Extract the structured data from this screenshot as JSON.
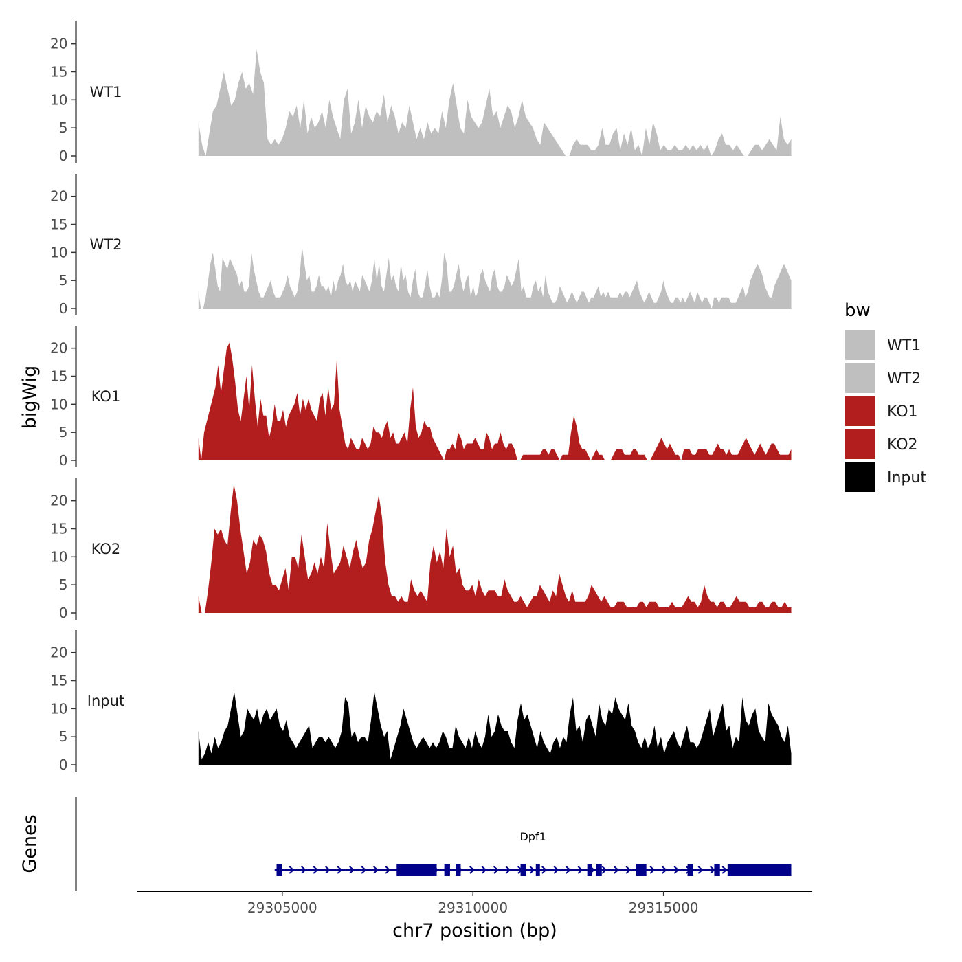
{
  "chart_data": {
    "type": "area",
    "ylabel": "bigWig",
    "genes_label": "Genes",
    "xlabel": "chr7 position (bp)",
    "x_ticks": [
      29305000,
      29310000,
      29315000
    ],
    "x_tick_labels": [
      "29305000",
      "29310000",
      "29315000"
    ],
    "xlim": [
      29301200,
      29318900
    ],
    "data_xlim": [
      29302800,
      29318350
    ],
    "ylim": [
      0,
      24
    ],
    "y_ticks": [
      0,
      5,
      10,
      15,
      20
    ],
    "y_tick_labels": [
      "0",
      "5",
      "10",
      "15",
      "20"
    ],
    "legend": {
      "title": "bw",
      "entries": [
        {
          "label": "WT1",
          "color": "#bfbfbf"
        },
        {
          "label": "WT2",
          "color": "#bfbfbf"
        },
        {
          "label": "KO1",
          "color": "#b21e1e"
        },
        {
          "label": "KO2",
          "color": "#b21e1e"
        },
        {
          "label": "Input",
          "color": "#000000"
        }
      ]
    },
    "series": [
      {
        "name": "WT1",
        "color": "#bfbfbf",
        "values": [
          6,
          2,
          0,
          4,
          8,
          9,
          12,
          15,
          12,
          9,
          10,
          13,
          15,
          12,
          13,
          11,
          19,
          15,
          13,
          3,
          2,
          3,
          2,
          3,
          5,
          8,
          7,
          9,
          5,
          10,
          4,
          7,
          5,
          6,
          8,
          5,
          10,
          7,
          5,
          3,
          10,
          12,
          4,
          6,
          10,
          5,
          9,
          7,
          6,
          8,
          7,
          11,
          6,
          9,
          7,
          4,
          6,
          5,
          9,
          6,
          3,
          5,
          3,
          6,
          4,
          5,
          4,
          8,
          5,
          10,
          13,
          9,
          5,
          4,
          10,
          7,
          6,
          5,
          6,
          9,
          12,
          7,
          8,
          5,
          7,
          9,
          8,
          5,
          7,
          10,
          7,
          6,
          5,
          3,
          2,
          6,
          5,
          4,
          3,
          2,
          1,
          0,
          0,
          2,
          3,
          2,
          2,
          2,
          1,
          1,
          2,
          5,
          2,
          2,
          4,
          5,
          1,
          4,
          2,
          5,
          1,
          2,
          0,
          5,
          2,
          6,
          4,
          1,
          2,
          1,
          1,
          2,
          1,
          1,
          2,
          1,
          2,
          1,
          2,
          1,
          2,
          0,
          1,
          3,
          4,
          2,
          2,
          1,
          2,
          1,
          0,
          0,
          1,
          2,
          2,
          1,
          2,
          3,
          2,
          1,
          7,
          3,
          2,
          3
        ]
      },
      {
        "name": "WT2",
        "color": "#bfbfbf",
        "values": [
          3,
          0,
          0,
          2,
          5,
          8,
          10,
          7,
          4,
          3,
          9,
          8,
          7,
          9,
          8,
          7,
          6,
          4,
          5,
          3,
          3,
          4,
          10,
          7,
          5,
          3,
          2,
          2,
          3,
          4,
          5,
          3,
          2,
          2,
          2,
          3,
          4,
          6,
          4,
          3,
          2,
          3,
          6,
          11,
          8,
          5,
          6,
          3,
          3,
          4,
          6,
          4,
          4,
          3,
          4,
          2,
          5,
          3,
          5,
          6,
          8,
          5,
          4,
          5,
          3,
          5,
          4,
          3,
          6,
          5,
          4,
          3,
          5,
          9,
          5,
          8,
          4,
          3,
          6,
          9,
          5,
          6,
          4,
          3,
          8,
          5,
          6,
          3,
          2,
          5,
          7,
          3,
          2,
          2,
          4,
          7,
          4,
          2,
          2,
          3,
          2,
          5,
          10,
          8,
          3,
          3,
          4,
          6,
          8,
          5,
          3,
          5,
          6,
          2,
          4,
          2,
          3,
          6,
          7,
          5,
          4,
          3,
          6,
          7,
          4,
          3,
          3,
          4,
          6,
          5,
          4,
          5,
          7,
          9,
          3,
          4,
          2,
          2,
          2,
          4,
          5,
          3,
          4,
          2,
          6,
          3,
          2,
          1,
          1,
          2,
          4,
          3,
          2,
          1,
          2,
          3,
          2,
          1,
          2,
          3,
          3,
          2,
          1,
          2,
          2,
          3,
          4,
          2,
          3,
          2,
          3,
          2,
          2,
          2,
          2,
          3,
          2,
          3,
          3,
          2,
          3,
          4,
          5,
          3,
          2,
          1,
          2,
          3,
          2,
          1,
          1,
          2,
          3,
          5,
          3,
          2,
          1,
          1,
          2,
          2,
          1,
          2,
          1,
          2,
          3,
          2,
          1,
          3,
          2,
          1,
          2,
          2,
          1,
          0,
          2,
          2,
          1,
          2,
          2,
          2,
          2,
          1,
          1,
          1,
          2,
          3,
          4,
          2,
          3,
          5,
          6,
          7,
          8,
          7,
          6,
          4,
          3,
          2,
          2,
          4,
          5,
          6,
          7,
          8,
          7,
          6,
          5
        ]
      },
      {
        "name": "KO1",
        "color": "#b21e1e",
        "values": [
          4,
          0,
          5,
          7,
          9,
          11,
          13,
          17,
          12,
          16,
          20,
          21,
          18,
          14,
          9,
          7,
          11,
          15,
          9,
          17,
          11,
          6,
          11,
          8,
          8,
          4,
          6,
          10,
          7,
          7,
          9,
          6,
          8,
          9,
          10,
          12,
          8,
          11,
          9,
          11,
          9,
          8,
          7,
          11,
          12,
          8,
          13,
          9,
          10,
          18,
          9,
          6,
          3,
          2,
          4,
          3,
          2,
          2,
          4,
          3,
          2,
          3,
          6,
          5,
          5,
          4,
          6,
          7,
          4,
          5,
          3,
          3,
          4,
          5,
          3,
          9,
          13,
          6,
          4,
          5,
          7,
          6,
          6,
          4,
          3,
          2,
          1,
          0,
          2,
          2,
          3,
          2,
          5,
          4,
          2,
          3,
          3,
          3,
          4,
          3,
          2,
          2,
          5,
          4,
          2,
          3,
          3,
          5,
          3,
          2,
          3,
          3,
          2,
          0,
          0,
          1,
          1,
          1,
          1,
          1,
          1,
          1,
          2,
          2,
          1,
          2,
          2,
          1,
          0,
          1,
          1,
          1,
          5,
          8,
          6,
          3,
          2,
          2,
          1,
          0,
          1,
          2,
          1,
          1,
          0,
          0,
          0,
          1,
          2,
          2,
          2,
          1,
          1,
          1,
          2,
          2,
          1,
          1,
          1,
          0,
          0,
          1,
          2,
          3,
          4,
          3,
          2,
          3,
          2,
          1,
          1,
          0,
          2,
          2,
          2,
          1,
          1,
          2,
          2,
          2,
          2,
          1,
          1,
          2,
          3,
          2,
          2,
          1,
          2,
          1,
          1,
          1,
          2,
          3,
          4,
          3,
          2,
          1,
          2,
          3,
          2,
          1,
          2,
          3,
          3,
          2,
          1,
          1,
          1,
          1,
          2
        ]
      },
      {
        "name": "KO2",
        "color": "#b21e1e",
        "values": [
          3,
          0,
          0,
          4,
          9,
          15,
          14,
          15,
          13,
          12,
          18,
          23,
          20,
          15,
          11,
          7,
          9,
          13,
          12,
          14,
          13,
          11,
          7,
          5,
          5,
          4,
          6,
          8,
          4,
          10,
          10,
          8,
          14,
          10,
          6,
          7,
          9,
          7,
          10,
          8,
          16,
          11,
          7,
          8,
          9,
          12,
          10,
          8,
          11,
          13,
          10,
          8,
          9,
          13,
          15,
          18,
          21,
          17,
          9,
          5,
          3,
          3,
          2,
          3,
          2,
          2,
          6,
          4,
          3,
          4,
          3,
          2,
          9,
          12,
          9,
          11,
          8,
          15,
          10,
          12,
          7,
          8,
          5,
          4,
          4,
          5,
          3,
          6,
          4,
          3,
          4,
          4,
          4,
          3,
          3,
          6,
          4,
          3,
          2,
          2,
          3,
          2,
          1,
          2,
          3,
          3,
          5,
          4,
          3,
          2,
          4,
          3,
          7,
          5,
          3,
          2,
          4,
          2,
          2,
          2,
          2,
          3,
          5,
          4,
          3,
          2,
          3,
          2,
          1,
          1,
          2,
          2,
          2,
          1,
          1,
          1,
          1,
          2,
          2,
          1,
          2,
          2,
          2,
          1,
          1,
          1,
          1,
          2,
          1,
          1,
          1,
          2,
          3,
          2,
          2,
          1,
          2,
          5,
          3,
          2,
          2,
          1,
          2,
          2,
          1,
          1,
          2,
          3,
          2,
          2,
          2,
          1,
          1,
          1,
          2,
          2,
          1,
          1,
          2,
          2,
          1,
          1,
          2,
          1,
          1
        ]
      },
      {
        "name": "Input",
        "color": "#000000",
        "values": [
          6,
          1,
          2,
          4,
          2,
          5,
          3,
          4,
          6,
          7,
          10,
          13,
          9,
          5,
          6,
          10,
          9,
          8,
          10,
          7,
          9,
          10,
          8,
          9,
          10,
          7,
          6,
          8,
          5,
          4,
          3,
          4,
          5,
          6,
          7,
          3,
          4,
          5,
          5,
          4,
          5,
          4,
          3,
          4,
          6,
          12,
          11,
          5,
          6,
          4,
          5,
          5,
          4,
          8,
          13,
          10,
          7,
          5,
          6,
          1,
          3,
          5,
          7,
          10,
          8,
          6,
          4,
          3,
          4,
          5,
          4,
          3,
          4,
          3,
          4,
          6,
          5,
          3,
          3,
          7,
          5,
          4,
          3,
          5,
          3,
          6,
          4,
          3,
          5,
          9,
          5,
          6,
          9,
          7,
          6,
          6,
          4,
          3,
          8,
          11,
          8,
          9,
          7,
          5,
          3,
          6,
          4,
          3,
          2,
          4,
          5,
          3,
          5,
          4,
          9,
          12,
          6,
          7,
          4,
          8,
          9,
          7,
          5,
          11,
          8,
          7,
          10,
          9,
          12,
          10,
          9,
          8,
          11,
          7,
          6,
          4,
          3,
          5,
          3,
          4,
          7,
          3,
          5,
          2,
          4,
          5,
          6,
          4,
          3,
          5,
          7,
          4,
          4,
          3,
          4,
          6,
          8,
          10,
          5,
          7,
          9,
          11,
          6,
          7,
          3,
          5,
          4,
          12,
          8,
          7,
          9,
          10,
          6,
          5,
          4,
          11,
          9,
          8,
          7,
          5,
          4,
          7,
          2
        ]
      }
    ],
    "genes": [
      {
        "name": "Dpf1",
        "start": 29304800,
        "end": 29318350,
        "strand": "+",
        "color": "#00008b",
        "exons": [
          [
            29304850,
            29305000
          ],
          [
            29308000,
            29309050
          ],
          [
            29309250,
            29309400
          ],
          [
            29309550,
            29309680
          ],
          [
            29311250,
            29311400
          ],
          [
            29311650,
            29311750
          ],
          [
            29313000,
            29313120
          ],
          [
            29313230,
            29313380
          ],
          [
            29314280,
            29314550
          ],
          [
            29315630,
            29315780
          ],
          [
            29316330,
            29316480
          ],
          [
            29316680,
            29318350
          ]
        ]
      }
    ]
  }
}
